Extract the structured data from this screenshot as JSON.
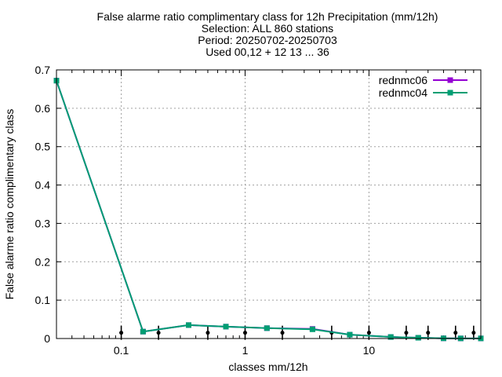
{
  "chart_data": {
    "type": "line",
    "title_lines": [
      "False alarme ratio complimentary class  for 12h Precipitation (mm/12h)",
      "Selection: ALL    860 stations",
      "Period: 20250702-20250703",
      "Used 00,12 + 12 13 ... 36"
    ],
    "xlabel": "classes mm/12h",
    "ylabel": "False alarme ratio complimentary class",
    "x_scale": "log",
    "xlim": [
      0.03,
      80
    ],
    "ylim": [
      0,
      0.7
    ],
    "x_ticks": [
      {
        "value": 0.1,
        "label": "0.1"
      },
      {
        "value": 1,
        "label": "1"
      },
      {
        "value": 10,
        "label": "10"
      }
    ],
    "y_ticks": [
      {
        "value": 0,
        "label": "0"
      },
      {
        "value": 0.1,
        "label": "0.1"
      },
      {
        "value": 0.2,
        "label": "0.2"
      },
      {
        "value": 0.3,
        "label": "0.3"
      },
      {
        "value": 0.4,
        "label": "0.4"
      },
      {
        "value": 0.5,
        "label": "0.5"
      },
      {
        "value": 0.6,
        "label": "0.6"
      },
      {
        "value": 0.7,
        "label": "0.7"
      }
    ],
    "grid": true,
    "legend_position": "top-right",
    "x": [
      0.03,
      0.15,
      0.35,
      0.7,
      1.5,
      3.5,
      7,
      15,
      25,
      40,
      55,
      80
    ],
    "series": [
      {
        "name": "rednmc06",
        "color": "#9400d3",
        "values": [
          0.672,
          0.018,
          0.035,
          0.031,
          0.027,
          0.025,
          0.01,
          0.004,
          0.002,
          0.0005,
          0.0003,
          0.0003
        ]
      },
      {
        "name": "rednmc04",
        "color": "#009e73",
        "values": [
          0.672,
          0.018,
          0.035,
          0.031,
          0.027,
          0.024,
          0.01,
          0.004,
          0.002,
          0.0005,
          0.0003,
          0.0003
        ]
      }
    ],
    "error_bar_x": [
      0.1,
      0.2,
      0.5,
      1,
      2,
      5,
      10,
      20,
      30,
      50,
      70
    ],
    "error_bar_y": [
      0.015,
      0.015,
      0.015,
      0.015,
      0.015,
      0.015,
      0.015,
      0.015,
      0.015,
      0.015,
      0.015
    ]
  }
}
